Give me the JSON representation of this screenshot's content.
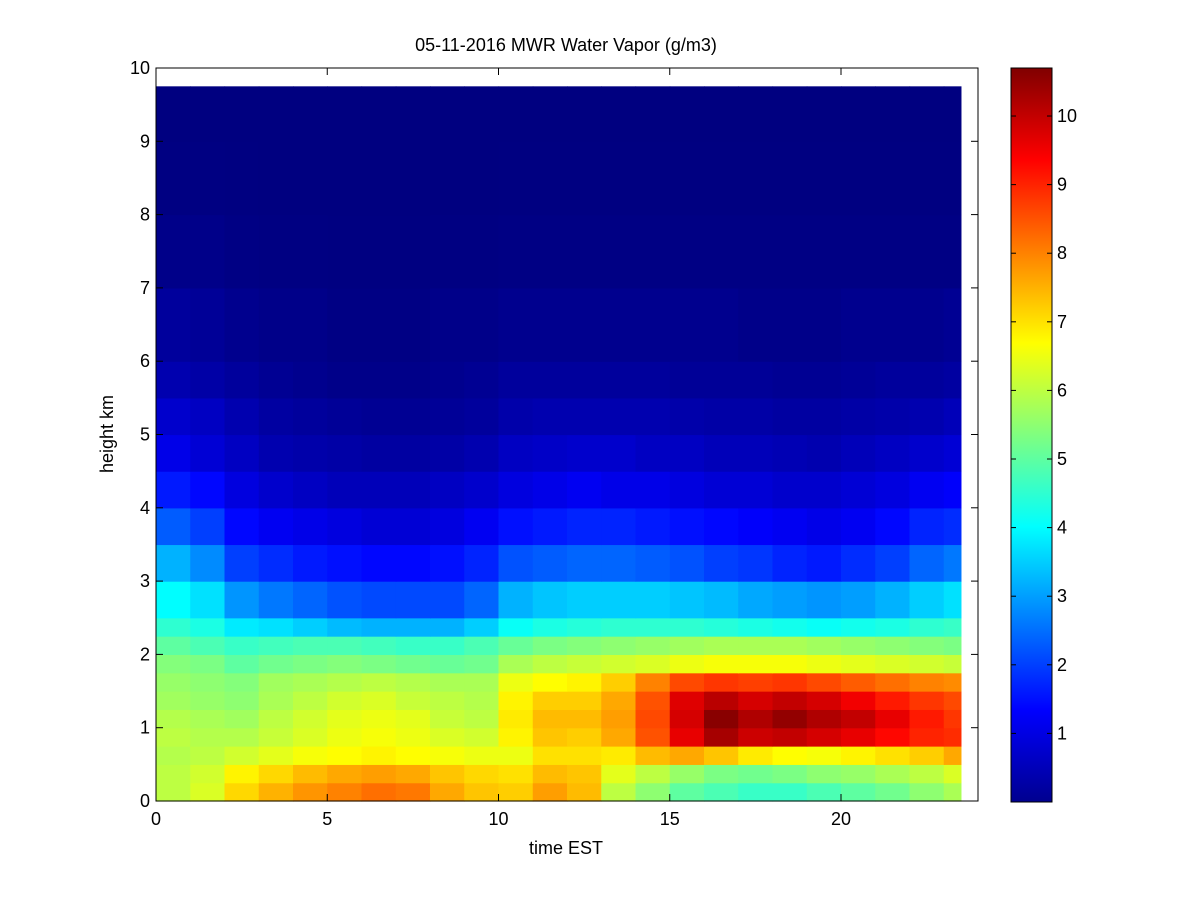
{
  "chart_data": {
    "type": "heatmap",
    "title": "05-11-2016 MWR Water Vapor (g/m3)",
    "xlabel": "time EST",
    "ylabel": "height km",
    "xlim": [
      0,
      24
    ],
    "ylim": [
      0,
      10
    ],
    "xticks": [
      0,
      5,
      10,
      15,
      20
    ],
    "yticks": [
      0,
      1,
      2,
      3,
      4,
      5,
      6,
      7,
      8,
      9,
      10
    ],
    "colormap": "jet",
    "clim": [
      0,
      10.7
    ],
    "colorbar_ticks": [
      1,
      2,
      3,
      4,
      5,
      6,
      7,
      8,
      9,
      10
    ],
    "data_extent": {
      "x_end": 23.5,
      "y_top": 9.75
    },
    "x": [
      0,
      1,
      2,
      3,
      4,
      5,
      6,
      7,
      8,
      9,
      10,
      11,
      12,
      13,
      14,
      15,
      16,
      17,
      18,
      19,
      20,
      21,
      22,
      23
    ],
    "y": [
      0,
      0.25,
      0.5,
      0.75,
      1.0,
      1.25,
      1.5,
      1.75,
      2.0,
      2.25,
      2.5,
      3.0,
      3.5,
      4.0,
      4.5,
      5.0,
      5.5,
      6.0,
      7.0,
      8.0,
      9.0
    ],
    "z": [
      [
        6.0,
        6.3,
        7.1,
        7.5,
        7.8,
        8.0,
        8.2,
        8.1,
        7.6,
        7.3,
        7.2,
        7.7,
        7.4,
        6.0,
        5.5,
        5.0,
        4.8,
        4.6,
        4.6,
        4.8,
        5.0,
        5.2,
        5.5,
        5.8
      ],
      [
        6.0,
        6.2,
        6.8,
        7.1,
        7.4,
        7.6,
        7.7,
        7.6,
        7.3,
        7.1,
        7.0,
        7.4,
        7.3,
        6.4,
        6.0,
        5.6,
        5.3,
        5.2,
        5.3,
        5.5,
        5.6,
        5.8,
        6.0,
        6.3
      ],
      [
        5.9,
        6.0,
        6.2,
        6.4,
        6.6,
        6.7,
        6.8,
        6.7,
        6.6,
        6.5,
        6.5,
        7.0,
        7.0,
        6.9,
        7.4,
        7.6,
        7.3,
        6.9,
        6.7,
        6.6,
        6.8,
        7.0,
        7.2,
        7.6
      ],
      [
        6.0,
        5.9,
        5.9,
        6.1,
        6.3,
        6.5,
        6.6,
        6.5,
        6.3,
        6.2,
        6.8,
        7.3,
        7.2,
        7.6,
        8.5,
        9.6,
        10.3,
        9.9,
        10.0,
        9.8,
        9.6,
        9.3,
        9.0,
        8.9
      ],
      [
        5.9,
        5.8,
        5.7,
        6.0,
        6.2,
        6.4,
        6.5,
        6.4,
        6.1,
        6.0,
        6.9,
        7.4,
        7.4,
        7.7,
        8.6,
        9.8,
        10.6,
        10.2,
        10.5,
        10.2,
        10.0,
        9.6,
        9.1,
        8.8
      ],
      [
        5.7,
        5.6,
        5.5,
        5.8,
        6.0,
        6.2,
        6.3,
        6.1,
        6.0,
        5.9,
        6.8,
        7.2,
        7.2,
        7.6,
        8.5,
        9.7,
        10.1,
        9.8,
        10.0,
        9.8,
        9.5,
        9.1,
        8.8,
        8.6
      ],
      [
        5.6,
        5.5,
        5.4,
        5.7,
        5.8,
        5.9,
        6.0,
        5.9,
        5.8,
        5.8,
        6.5,
        6.7,
        6.8,
        7.2,
        8.0,
        8.6,
        8.8,
        8.7,
        8.8,
        8.6,
        8.4,
        8.2,
        8.0,
        7.9
      ],
      [
        5.4,
        5.3,
        5.0,
        5.2,
        5.3,
        5.4,
        5.3,
        5.2,
        5.1,
        5.2,
        5.8,
        6.0,
        6.1,
        6.2,
        6.3,
        6.5,
        6.6,
        6.6,
        6.6,
        6.5,
        6.4,
        6.3,
        6.2,
        6.1
      ],
      [
        5.0,
        4.8,
        4.6,
        4.7,
        4.8,
        4.8,
        4.7,
        4.6,
        4.6,
        4.8,
        5.1,
        5.3,
        5.4,
        5.5,
        5.6,
        5.7,
        5.8,
        5.8,
        5.8,
        5.7,
        5.6,
        5.5,
        5.4,
        5.3
      ],
      [
        4.5,
        4.3,
        3.8,
        3.7,
        3.5,
        3.3,
        3.2,
        3.2,
        3.2,
        3.5,
        4.1,
        4.3,
        4.4,
        4.5,
        4.5,
        4.5,
        4.4,
        4.3,
        4.2,
        4.1,
        4.2,
        4.3,
        4.5,
        4.6
      ],
      [
        4.0,
        3.7,
        2.9,
        2.6,
        2.4,
        2.2,
        2.1,
        2.1,
        2.1,
        2.4,
        3.2,
        3.4,
        3.5,
        3.5,
        3.5,
        3.4,
        3.3,
        3.1,
        3.0,
        2.9,
        3.0,
        3.2,
        3.5,
        3.7
      ],
      [
        3.2,
        2.8,
        2.0,
        1.8,
        1.6,
        1.5,
        1.4,
        1.4,
        1.5,
        1.7,
        2.2,
        2.3,
        2.4,
        2.4,
        2.3,
        2.2,
        2.0,
        1.9,
        1.7,
        1.6,
        1.8,
        2.0,
        2.4,
        2.6
      ],
      [
        2.3,
        2.0,
        1.4,
        1.2,
        1.1,
        1.0,
        0.9,
        0.9,
        1.0,
        1.2,
        1.5,
        1.6,
        1.7,
        1.7,
        1.6,
        1.5,
        1.4,
        1.3,
        1.2,
        1.1,
        1.2,
        1.4,
        1.7,
        1.8
      ],
      [
        1.6,
        1.4,
        1.0,
        0.8,
        0.7,
        0.6,
        0.6,
        0.6,
        0.7,
        0.8,
        1.0,
        1.1,
        1.2,
        1.1,
        1.1,
        1.0,
        0.9,
        0.9,
        0.8,
        0.8,
        0.9,
        1.0,
        1.2,
        1.3
      ],
      [
        1.1,
        0.9,
        0.7,
        0.5,
        0.45,
        0.4,
        0.35,
        0.35,
        0.4,
        0.5,
        0.7,
        0.75,
        0.8,
        0.8,
        0.7,
        0.7,
        0.6,
        0.6,
        0.55,
        0.5,
        0.6,
        0.7,
        0.8,
        0.9
      ],
      [
        0.8,
        0.7,
        0.5,
        0.35,
        0.3,
        0.25,
        0.2,
        0.2,
        0.25,
        0.3,
        0.45,
        0.5,
        0.5,
        0.5,
        0.5,
        0.45,
        0.4,
        0.4,
        0.35,
        0.35,
        0.4,
        0.45,
        0.5,
        0.6
      ],
      [
        0.5,
        0.4,
        0.3,
        0.2,
        0.15,
        0.1,
        0.1,
        0.1,
        0.15,
        0.2,
        0.3,
        0.3,
        0.3,
        0.3,
        0.3,
        0.25,
        0.25,
        0.25,
        0.2,
        0.2,
        0.25,
        0.3,
        0.3,
        0.35
      ],
      [
        0.3,
        0.25,
        0.15,
        0.1,
        0.1,
        0.05,
        0.05,
        0.05,
        0.1,
        0.1,
        0.15,
        0.15,
        0.15,
        0.15,
        0.15,
        0.15,
        0.15,
        0.1,
        0.1,
        0.1,
        0.15,
        0.15,
        0.15,
        0.2
      ],
      [
        0.1,
        0.1,
        0.05,
        0.03,
        0.03,
        0.02,
        0.02,
        0.02,
        0.03,
        0.03,
        0.05,
        0.05,
        0.05,
        0.05,
        0.05,
        0.05,
        0.05,
        0.05,
        0.05,
        0.05,
        0.05,
        0.05,
        0.05,
        0.05
      ],
      [
        0.03,
        0.03,
        0.02,
        0.01,
        0.01,
        0.01,
        0.01,
        0.01,
        0.01,
        0.01,
        0.02,
        0.02,
        0.02,
        0.02,
        0.02,
        0.02,
        0.02,
        0.02,
        0.02,
        0.02,
        0.02,
        0.02,
        0.02,
        0.02
      ],
      [
        0.01,
        0.01,
        0.01,
        0.01,
        0.01,
        0.01,
        0.01,
        0.01,
        0.01,
        0.01,
        0.01,
        0.01,
        0.01,
        0.01,
        0.01,
        0.01,
        0.01,
        0.01,
        0.01,
        0.01,
        0.01,
        0.01,
        0.01,
        0.01
      ]
    ]
  }
}
